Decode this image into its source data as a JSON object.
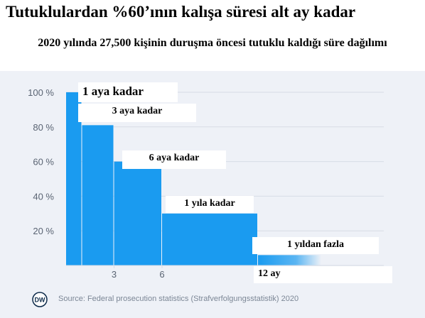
{
  "header": {
    "title": "Tutuklulardan %60’ının kalışa süresi alt ay kadar",
    "subtitle": "2020 yılında 27,500 kişinin duruşma öncesi tutuklu kaldığı süre dağılımı"
  },
  "source": "Source: Federal prosecution statistics (Strafverfolgungsstatistik) 2020",
  "logo_text": "DW",
  "colors": {
    "bar": "#1a9bf0",
    "grid": "#d7dce6",
    "axis_text": "#5a6473",
    "background": "#eef1f7"
  },
  "chart_data": {
    "type": "bar",
    "title": "Tutuklulardan %60’ının kalışa süresi alt ay kadar",
    "subtitle": "2020 yılında 27,500 kişinin duruşma öncesi tutuklu kaldığı süre dağılımı",
    "y_ticks": [
      "100 %",
      "80 %",
      "60 %",
      "40 %",
      "20 %"
    ],
    "y_tick_values": [
      100,
      80,
      60,
      40,
      20
    ],
    "ylim": [
      0,
      100
    ],
    "x_ticks": [
      "3",
      "6",
      "12 ay"
    ],
    "x_tick_values": [
      3,
      6,
      12
    ],
    "xlim": [
      0,
      16
    ],
    "grid": true,
    "bars": [
      {
        "x0": 0,
        "x1": 1,
        "value": 100,
        "label": "1 aya kadar"
      },
      {
        "x0": 1,
        "x1": 3,
        "value": 81,
        "label": "3 aya kadar"
      },
      {
        "x0": 3,
        "x1": 6,
        "value": 60,
        "label": "6 aya kadar"
      },
      {
        "x0": 6,
        "x1": 12,
        "value": 30,
        "label": "1 yıla kadar"
      },
      {
        "x0": 12,
        "x1": 16,
        "value": 6,
        "label": "1 yıldan fazla"
      }
    ]
  }
}
